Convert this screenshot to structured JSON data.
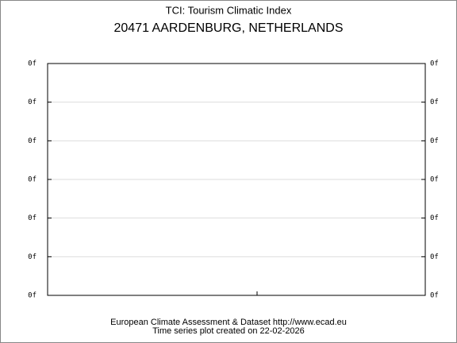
{
  "chart_data": {
    "type": "line",
    "title": "TCI: Tourism Climatic Index",
    "subtitle": "20471 AARDENBURG, NETHERLANDS",
    "ylim": [
      0,
      6
    ],
    "yticks": [
      {
        "value": 0,
        "label": "0f"
      },
      {
        "value": 1,
        "label": "0f"
      },
      {
        "value": 2,
        "label": "0f"
      },
      {
        "value": 3,
        "label": "0f"
      },
      {
        "value": 4,
        "label": "0f"
      },
      {
        "value": 5,
        "label": "0f"
      },
      {
        "value": 6,
        "label": "0f"
      }
    ],
    "y2lim": [
      0,
      6
    ],
    "y2ticks": [
      {
        "value": 0,
        "label": "0f"
      },
      {
        "value": 1,
        "label": "0f"
      },
      {
        "value": 2,
        "label": "0f"
      },
      {
        "value": 3,
        "label": "0f"
      },
      {
        "value": 4,
        "label": "0f"
      },
      {
        "value": 5,
        "label": "0f"
      },
      {
        "value": 6,
        "label": "0f"
      }
    ],
    "grid": true,
    "footer": [
      "European Climate Assessment & Dataset  http://www.ecad.eu",
      "Time series plot created on 22-02-2026"
    ]
  }
}
